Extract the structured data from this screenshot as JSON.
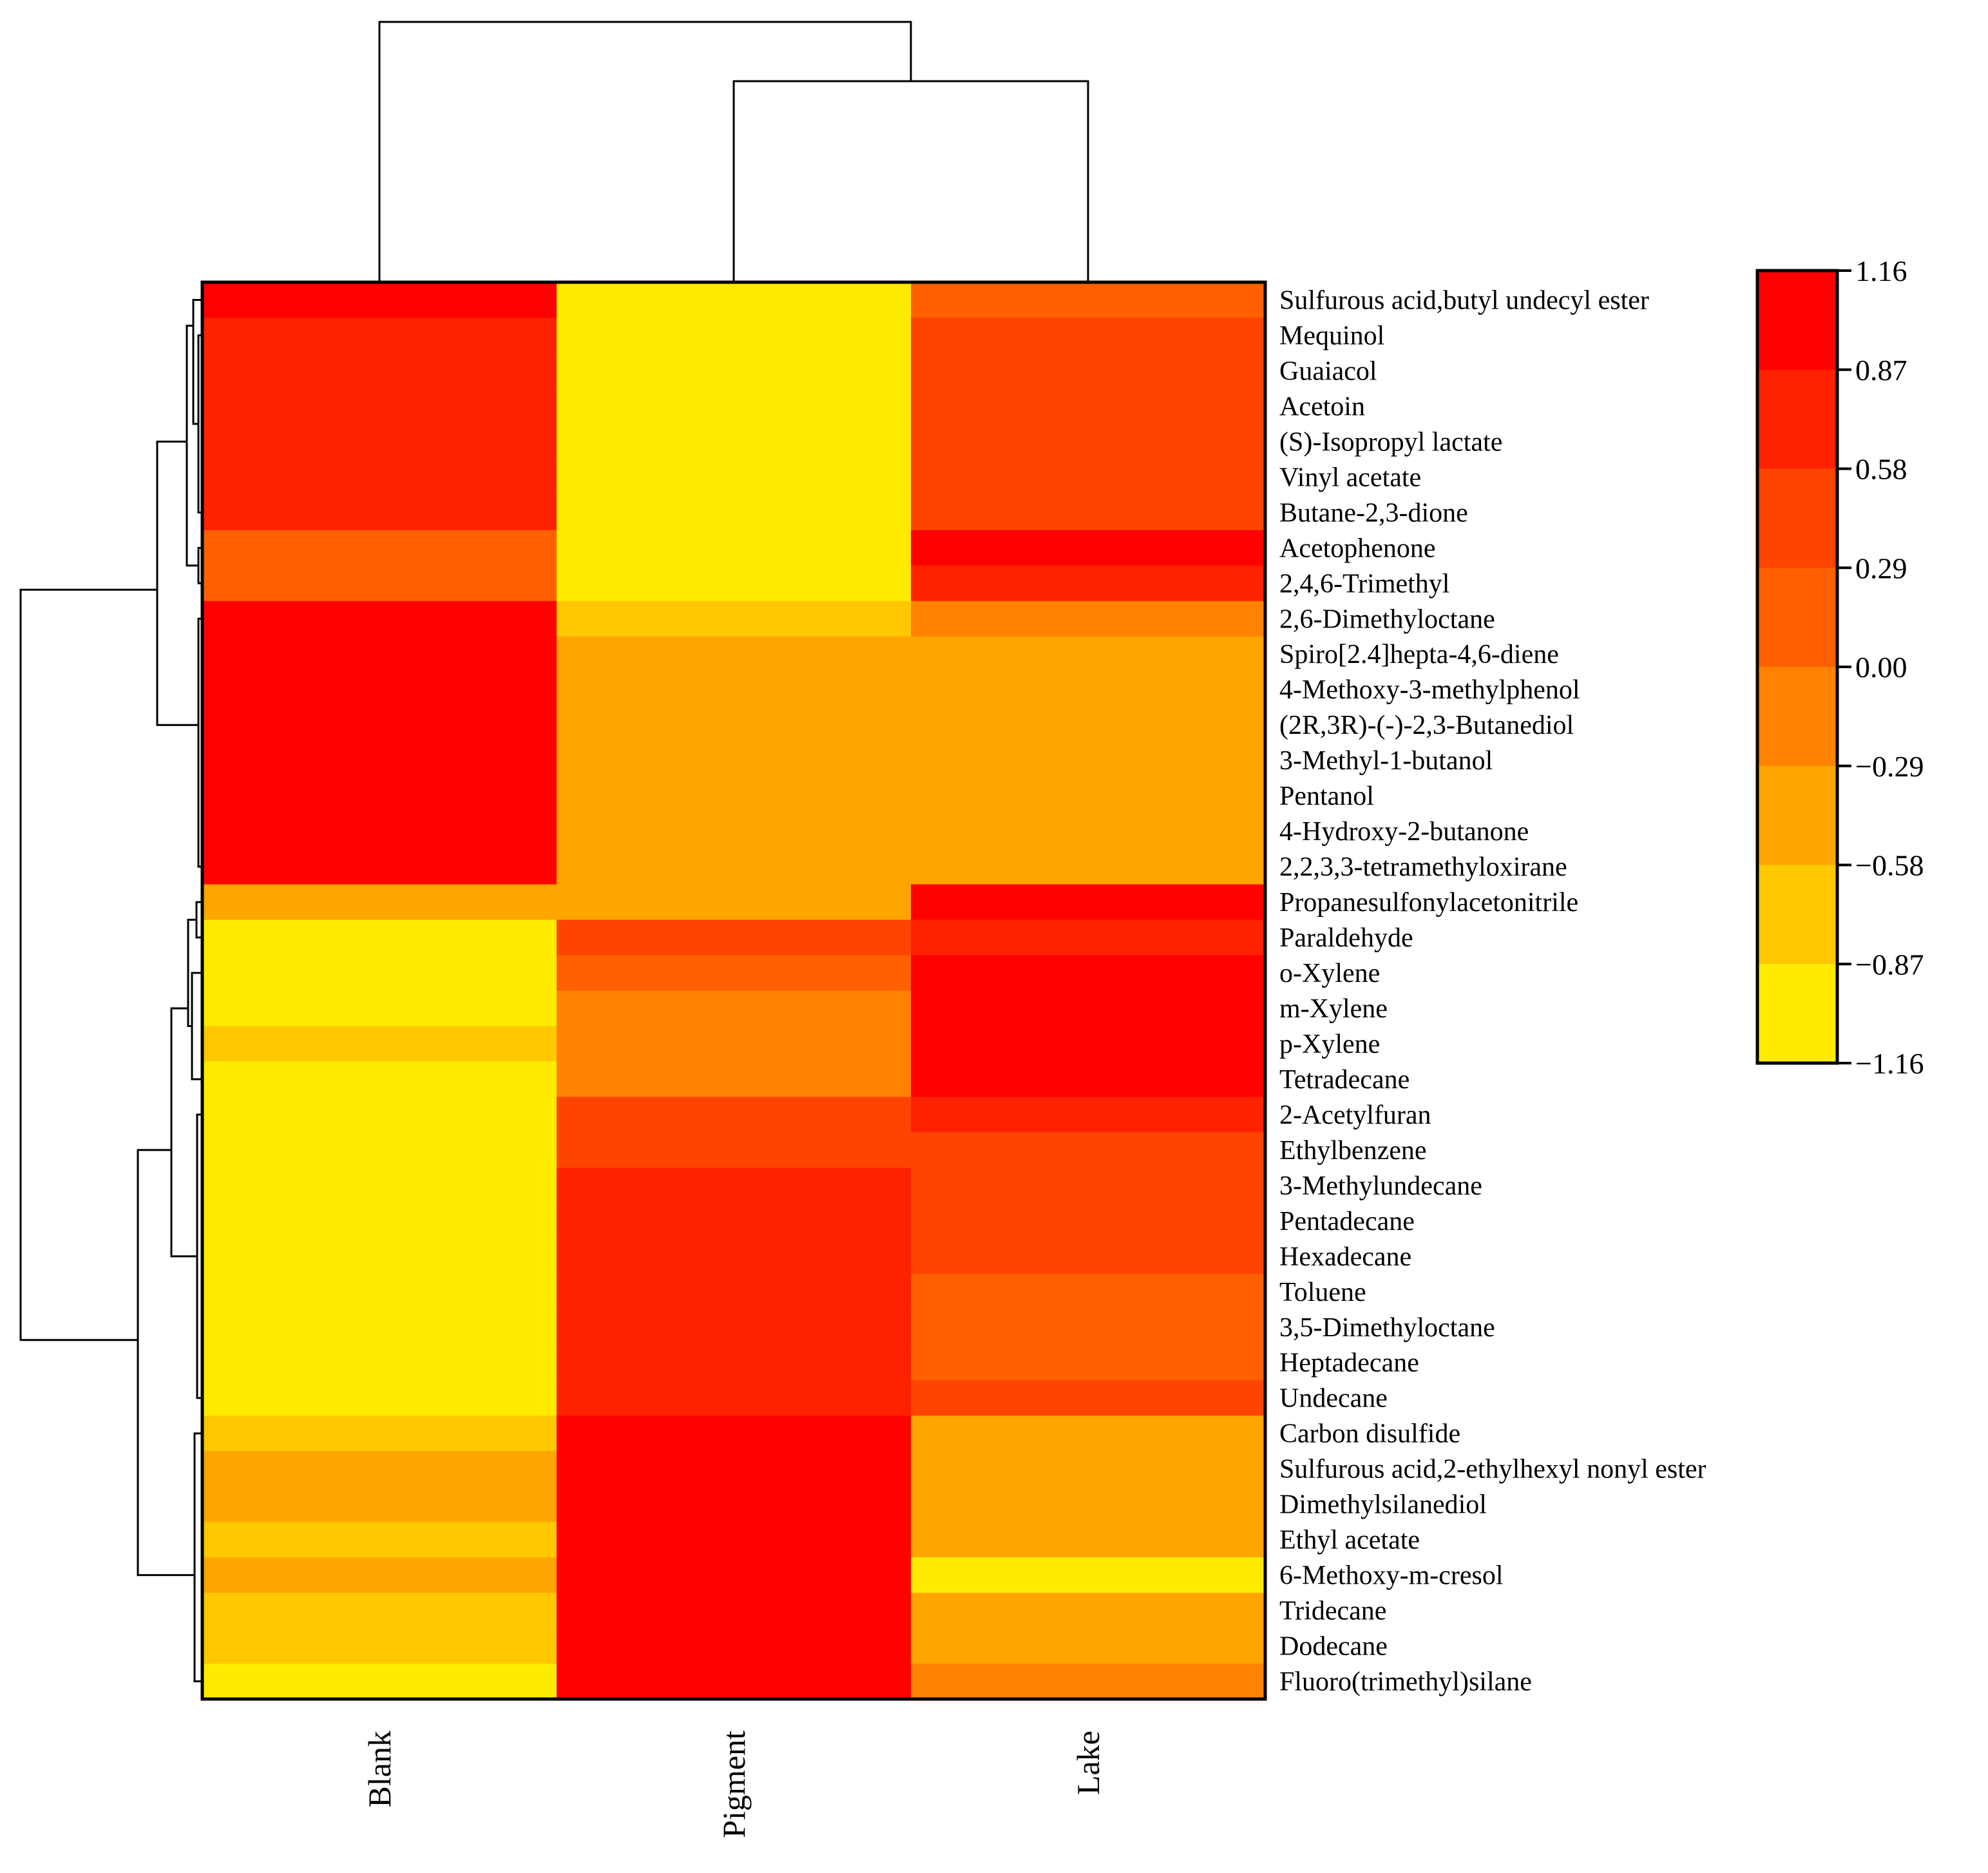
{
  "chart_data": {
    "type": "heatmap",
    "columns": [
      "Blank",
      "Pigment",
      "Lake"
    ],
    "rows": [
      "Sulfurous acid,butyl undecyl ester",
      "Mequinol",
      "Guaiacol",
      "Acetoin",
      "(S)-Isopropyl lactate",
      "Vinyl acetate",
      "Butane-2,3-dione",
      "Acetophenone",
      "2,4,6-Trimethyl",
      "2,6-Dimethyloctane",
      "Spiro[2.4]hepta-4,6-diene",
      "4-Methoxy-3-methylphenol",
      "(2R,3R)-(-)-2,3-Butanediol",
      "3-Methyl-1-butanol",
      "Pentanol",
      "4-Hydroxy-2-butanone",
      "2,2,3,3-tetramethyloxirane",
      "Propanesulfonylacetonitrile",
      "Paraldehyde",
      "o-Xylene",
      "m-Xylene",
      "p-Xylene",
      "Tetradecane",
      "2-Acetylfuran",
      "Ethylbenzene",
      "3-Methylundecane",
      "Pentadecane",
      "Hexadecane",
      "Toluene",
      "3,5-Dimethyloctane",
      "Heptadecane",
      "Undecane",
      "Carbon disulfide",
      "Sulfurous acid,2-ethylhexyl nonyl ester",
      "Dimethylsilanediol",
      "Ethyl acetate",
      "6-Methoxy-m-cresol",
      "Tridecane",
      "Dodecane",
      "Fluoro(trimethyl)silane"
    ],
    "values": [
      [
        1.02,
        -1.09,
        0.15
      ],
      [
        0.73,
        -1.09,
        0.44
      ],
      [
        0.73,
        -1.09,
        0.44
      ],
      [
        0.73,
        -1.09,
        0.44
      ],
      [
        0.73,
        -1.09,
        0.44
      ],
      [
        0.73,
        -1.09,
        0.44
      ],
      [
        0.73,
        -1.09,
        0.44
      ],
      [
        0.15,
        -1.09,
        1.02
      ],
      [
        0.15,
        -1.09,
        0.73
      ],
      [
        1.02,
        -0.73,
        -0.15
      ],
      [
        1.02,
        -0.44,
        -0.44
      ],
      [
        1.02,
        -0.44,
        -0.44
      ],
      [
        1.02,
        -0.44,
        -0.44
      ],
      [
        1.02,
        -0.44,
        -0.44
      ],
      [
        1.02,
        -0.44,
        -0.44
      ],
      [
        1.02,
        -0.44,
        -0.44
      ],
      [
        1.02,
        -0.44,
        -0.44
      ],
      [
        -0.44,
        -0.44,
        1.02
      ],
      [
        -1.09,
        0.44,
        0.73
      ],
      [
        -1.09,
        0.15,
        1.02
      ],
      [
        -1.09,
        -0.15,
        1.02
      ],
      [
        -0.73,
        -0.15,
        1.02
      ],
      [
        -1.09,
        -0.15,
        1.02
      ],
      [
        -1.09,
        0.44,
        0.73
      ],
      [
        -1.09,
        0.44,
        0.44
      ],
      [
        -1.09,
        0.73,
        0.44
      ],
      [
        -1.09,
        0.73,
        0.44
      ],
      [
        -1.09,
        0.73,
        0.44
      ],
      [
        -1.09,
        0.73,
        0.15
      ],
      [
        -1.09,
        0.73,
        0.15
      ],
      [
        -1.09,
        0.73,
        0.15
      ],
      [
        -1.09,
        0.73,
        0.44
      ],
      [
        -0.73,
        1.02,
        -0.44
      ],
      [
        -0.44,
        1.02,
        -0.44
      ],
      [
        -0.44,
        1.02,
        -0.44
      ],
      [
        -0.73,
        1.02,
        -0.44
      ],
      [
        -0.44,
        1.02,
        -1.09
      ],
      [
        -0.73,
        1.02,
        -0.44
      ],
      [
        -0.73,
        1.02,
        -0.44
      ],
      [
        -1.09,
        1.02,
        -0.15
      ]
    ],
    "colorbar": {
      "ticks": [
        "1.16",
        "0.87",
        "0.58",
        "0.29",
        "0.00",
        "−0.29",
        "−0.58",
        "−0.87",
        "−1.16"
      ],
      "range": [
        -1.16,
        1.16
      ],
      "colors": [
        "#ff0000",
        "#ff2200",
        "#ff4400",
        "#ff6000",
        "#ff8200",
        "#ffa500",
        "#ffc800",
        "#ffeb00"
      ]
    },
    "column_dendrogram": "((Pigment,Lake),Blank)",
    "grid": false
  }
}
